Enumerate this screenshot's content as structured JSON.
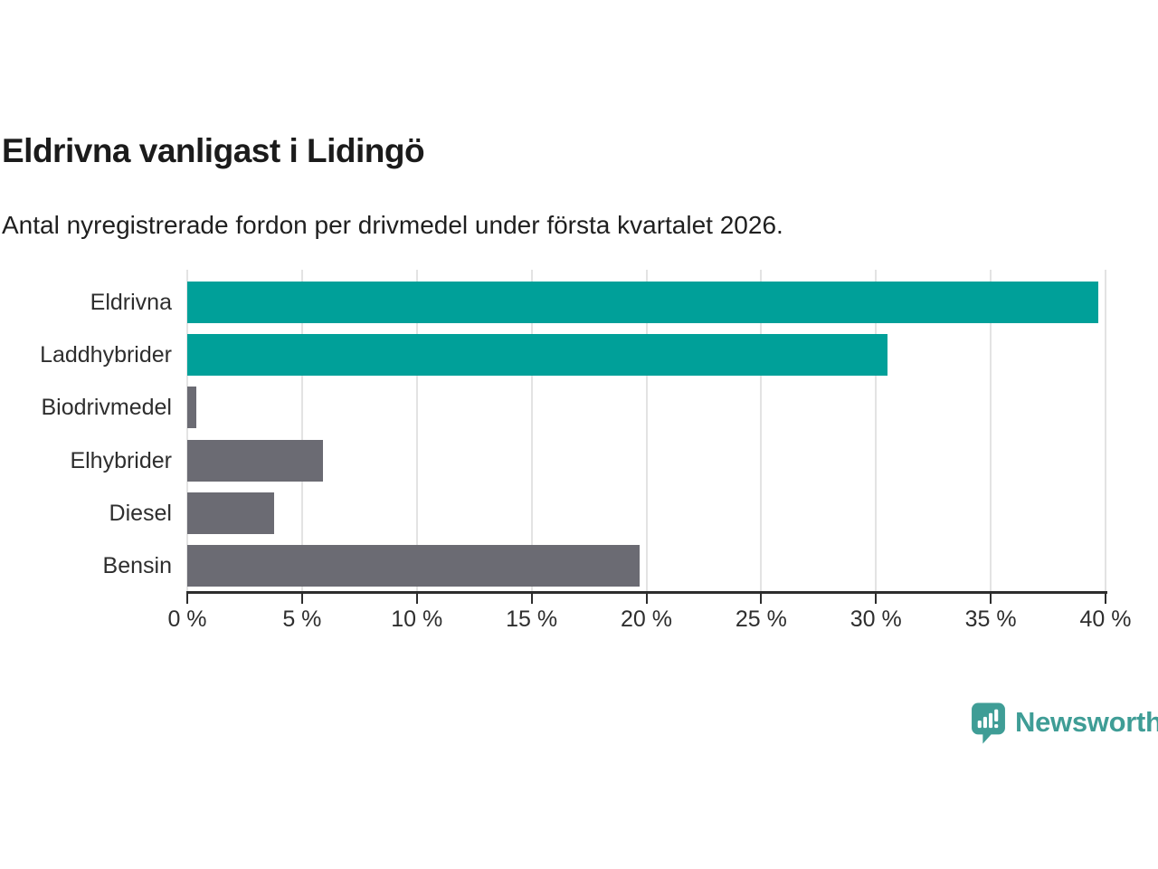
{
  "header": {
    "title": "Eldrivna vanligast i Lidingö",
    "subtitle": "Antal nyregistrerade fordon per drivmedel under första kvartalet 2026."
  },
  "chart_data": {
    "type": "bar",
    "orientation": "horizontal",
    "title": "Eldrivna vanligast i Lidingö",
    "subtitle": "Antal nyregistrerade fordon per drivmedel under första kvartalet 2026.",
    "categories": [
      "Eldrivna",
      "Laddhybrider",
      "Biodrivmedel",
      "Elhybrider",
      "Diesel",
      "Bensin"
    ],
    "values": [
      39.7,
      30.5,
      0.4,
      5.9,
      3.8,
      19.7
    ],
    "unit": "%",
    "bar_colors": [
      "#00a099",
      "#00a099",
      "#6b6b73",
      "#6b6b73",
      "#6b6b73",
      "#6b6b73"
    ],
    "highlight_color": "#00a099",
    "base_color": "#6b6b73",
    "xlim": [
      0,
      40
    ],
    "x_ticks": [
      0,
      5,
      10,
      15,
      20,
      25,
      30,
      35,
      40
    ],
    "x_tick_labels": [
      "0 %",
      "5 %",
      "10 %",
      "15 %",
      "20 %",
      "25 %",
      "30 %",
      "35 %",
      "40 %"
    ],
    "grid": "vertical",
    "gridline_color": "#e3e3e3",
    "axis_color": "#2d2d2d",
    "legend": "none"
  },
  "footer": {
    "brand": "Newsworthy",
    "brand_color": "#3f9d96",
    "logo_icon": "newsworthy-bubble-chart-icon"
  }
}
